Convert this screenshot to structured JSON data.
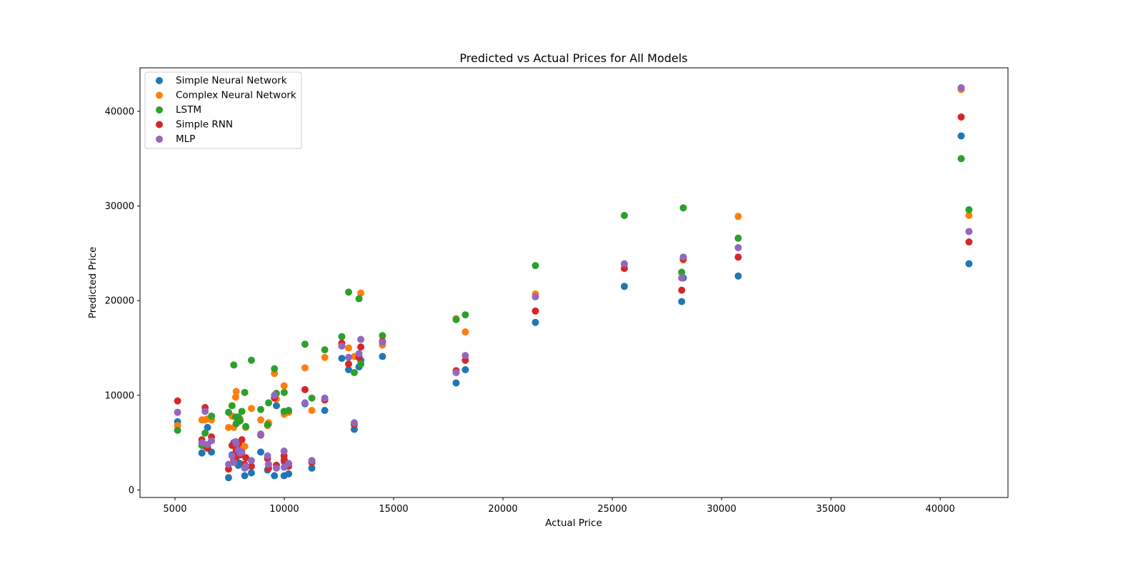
{
  "chart_data": {
    "type": "scatter",
    "title": "Predicted vs Actual Prices for All Models",
    "xlabel": "Actual Price",
    "ylabel": "Predicted Price",
    "xlim": [
      3400,
      43100
    ],
    "ylim": [
      -800,
      44600
    ],
    "xticks": [
      5000,
      10000,
      15000,
      20000,
      25000,
      30000,
      35000,
      40000
    ],
    "yticks": [
      0,
      10000,
      20000,
      30000,
      40000
    ],
    "grid": false,
    "legend_position": "top-left",
    "x": [
      5118,
      6229,
      6377,
      6488,
      6669,
      7450,
      7609,
      7689,
      7775,
      7799,
      7898,
      7975,
      8058,
      8189,
      8238,
      8495,
      8921,
      9233,
      9279,
      9549,
      9639,
      9989,
      9995,
      10198,
      10945,
      11259,
      11850,
      12629,
      12940,
      13200,
      13415,
      13499,
      14489,
      17859,
      18280,
      21485,
      25552,
      28176,
      28248,
      30760,
      40960,
      41315
    ],
    "series": [
      {
        "name": "Simple Neural Network",
        "color": "#1f77b4",
        "values": [
          7200,
          3900,
          4600,
          6600,
          4000,
          1300,
          3700,
          5000,
          3800,
          3100,
          2600,
          2800,
          4500,
          1500,
          2400,
          1800,
          4000,
          2100,
          7000,
          1500,
          8900,
          1500,
          3000,
          1700,
          9100,
          2300,
          8400,
          13900,
          12700,
          6400,
          13000,
          13700,
          14100,
          11300,
          12700,
          17700,
          21500,
          19900,
          22400,
          22600,
          37400,
          23900
        ]
      },
      {
        "name": "Complex Neural Network",
        "color": "#ff7f0e",
        "values": [
          6800,
          7400,
          7400,
          7500,
          7400,
          6600,
          7800,
          6600,
          9800,
          10400,
          7200,
          7500,
          4400,
          4600,
          6600,
          8600,
          7400,
          6800,
          7100,
          12300,
          9600,
          11000,
          8000,
          8200,
          12900,
          8400,
          14000,
          15500,
          15000,
          14100,
          14000,
          20800,
          15300,
          18100,
          16700,
          20700,
          23800,
          22400,
          24300,
          28900,
          42300,
          29000
        ]
      },
      {
        "name": "LSTM",
        "color": "#2ca02c",
        "values": [
          6300,
          4700,
          6000,
          4500,
          7800,
          8200,
          8900,
          13200,
          7700,
          7000,
          7700,
          7300,
          8300,
          10300,
          6700,
          13700,
          8500,
          6900,
          9200,
          12800,
          10200,
          8300,
          10300,
          8400,
          15400,
          9700,
          14800,
          16200,
          20900,
          12400,
          20200,
          13300,
          16300,
          18000,
          18500,
          23700,
          29000,
          23000,
          29800,
          26600,
          35000,
          29600
        ]
      },
      {
        "name": "Simple RNN",
        "color": "#d62728",
        "values": [
          9400,
          5300,
          8700,
          4400,
          5600,
          2200,
          4700,
          3100,
          3500,
          4200,
          4900,
          3700,
          5300,
          2700,
          3400,
          2500,
          5800,
          3300,
          2300,
          9700,
          2600,
          3600,
          3200,
          2500,
          10600,
          2900,
          9500,
          15500,
          13300,
          6900,
          14000,
          15100,
          15700,
          12600,
          13700,
          18900,
          23400,
          21100,
          24400,
          24600,
          39400,
          26200
        ]
      },
      {
        "name": "MLP",
        "color": "#9467bd",
        "values": [
          8200,
          5000,
          8300,
          4800,
          5200,
          2700,
          3600,
          2900,
          5100,
          4900,
          4200,
          3900,
          4000,
          2300,
          2500,
          3100,
          5900,
          3600,
          2700,
          10000,
          2300,
          4100,
          2400,
          2800,
          9200,
          3100,
          9700,
          15200,
          14000,
          7100,
          14400,
          15900,
          15600,
          12400,
          14200,
          20400,
          23900,
          22400,
          24600,
          25600,
          42500,
          27300
        ]
      }
    ]
  }
}
